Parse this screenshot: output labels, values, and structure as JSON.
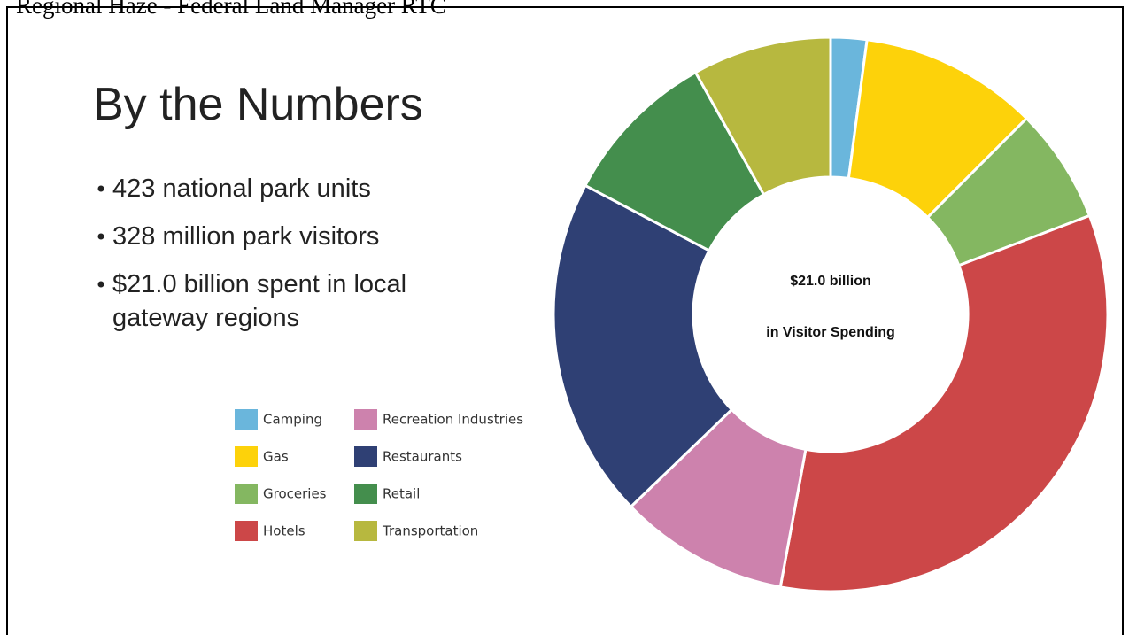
{
  "header": "Regional Haze - Federal Land Manager RTC",
  "title": "By the Numbers",
  "bullets": [
    [
      "423 national park units"
    ],
    [
      "328 million park visitors"
    ],
    [
      "$21.0 billion spent in local",
      "gateway regions"
    ]
  ],
  "chart_data": {
    "type": "donut",
    "center_text": [
      "$21.0 billion",
      "in Visitor Spending"
    ],
    "categories": [
      "Camping",
      "Gas",
      "Groceries",
      "Hotels",
      "Recreation Industries",
      "Restaurants",
      "Retail",
      "Transportation"
    ],
    "values": [
      2.1,
      10.4,
      6.7,
      33.7,
      9.9,
      19.9,
      9.2,
      8.1
    ],
    "colors": [
      "#6ab6dc",
      "#fdd20a",
      "#84b761",
      "#cc4748",
      "#cd82ad",
      "#2f4074",
      "#448e4d",
      "#b7b83f"
    ],
    "legend": "left"
  }
}
